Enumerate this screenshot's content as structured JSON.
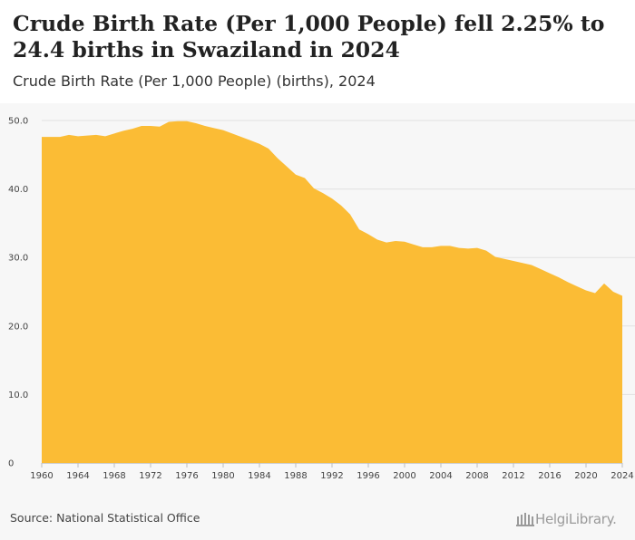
{
  "header": {
    "title": "Crude Birth Rate (Per 1,000 People) fell 2.25% to 24.4 births in Swaziland in 2024",
    "subtitle": "Crude Birth Rate (Per 1,000 People) (births), 2024"
  },
  "footer": {
    "source": "Source: National Statistical Office",
    "logo_text": "HelgiLibrary."
  },
  "colors": {
    "area_fill": "#fbbc35",
    "grid": "#e2e2e2",
    "background": "#f7f7f7"
  },
  "chart_data": {
    "type": "area",
    "title": "Crude Birth Rate (Per 1,000 People) fell 2.25% to 24.4 births in Swaziland in 2024",
    "xlabel": "",
    "ylabel": "",
    "ylim": [
      0,
      50
    ],
    "yticks": [
      "0",
      "10.0",
      "20.0",
      "30.0",
      "40.0",
      "50.0"
    ],
    "xticks": [
      "1960",
      "1964",
      "1968",
      "1972",
      "1976",
      "1980",
      "1984",
      "1988",
      "1992",
      "1996",
      "2000",
      "2004",
      "2008",
      "2012",
      "2016",
      "2020",
      "2024"
    ],
    "grid": true,
    "legend": "none",
    "x": [
      1960,
      1961,
      1962,
      1963,
      1964,
      1965,
      1966,
      1967,
      1968,
      1969,
      1970,
      1971,
      1972,
      1973,
      1974,
      1975,
      1976,
      1977,
      1978,
      1979,
      1980,
      1981,
      1982,
      1983,
      1984,
      1985,
      1986,
      1987,
      1988,
      1989,
      1990,
      1991,
      1992,
      1993,
      1994,
      1995,
      1996,
      1997,
      1998,
      1999,
      2000,
      2001,
      2002,
      2003,
      2004,
      2005,
      2006,
      2007,
      2008,
      2009,
      2010,
      2011,
      2012,
      2013,
      2014,
      2015,
      2016,
      2017,
      2018,
      2019,
      2020,
      2021,
      2022,
      2023,
      2024
    ],
    "series": [
      {
        "values": [
          47.6,
          47.6,
          47.6,
          47.9,
          47.7,
          47.8,
          47.9,
          47.7,
          48.1,
          48.5,
          48.8,
          49.2,
          49.2,
          49.1,
          49.8,
          49.9,
          49.9,
          49.6,
          49.2,
          48.9,
          48.6,
          48.1,
          47.6,
          47.1,
          46.6,
          45.9,
          44.5,
          43.3,
          42.1,
          41.6,
          40.1,
          39.4,
          38.6,
          37.6,
          36.3,
          34.1,
          33.4,
          32.6,
          32.2,
          32.4,
          32.3,
          31.9,
          31.5,
          31.5,
          31.7,
          31.7,
          31.4,
          31.3,
          31.4,
          31.0,
          30.1,
          29.8,
          29.5,
          29.2,
          28.9,
          28.3,
          27.7,
          27.1,
          26.4,
          25.8,
          25.2,
          24.8,
          26.2,
          25.0,
          24.4
        ]
      }
    ]
  }
}
